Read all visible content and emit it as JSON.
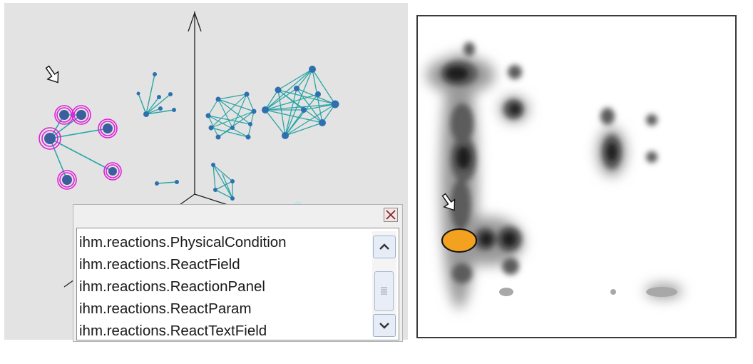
{
  "graph_view": {
    "axis_color": "#202020",
    "node_color": "#2f6fb0",
    "edge_color": "#2aa5a5",
    "selection_color": "#e020d8",
    "cursor_icon": "hand-pointer-icon"
  },
  "class_popup": {
    "close_icon": "close-x-icon",
    "items": [
      "ihm.reactions.PhysicalCondition",
      "ihm.reactions.ReactField",
      "ihm.reactions.ReactionPanel",
      "ihm.reactions.ReactParam",
      "ihm.reactions.ReactTextField"
    ],
    "scroll_up_icon": "chevron-up-icon",
    "scroll_down_icon": "chevron-down-icon",
    "scroll_thumb_icon": "grip-lines-icon"
  },
  "density_map": {
    "blob_color": "#222222",
    "highlight_color": "#f2a21e",
    "cursor_icon": "hand-pointer-icon"
  }
}
